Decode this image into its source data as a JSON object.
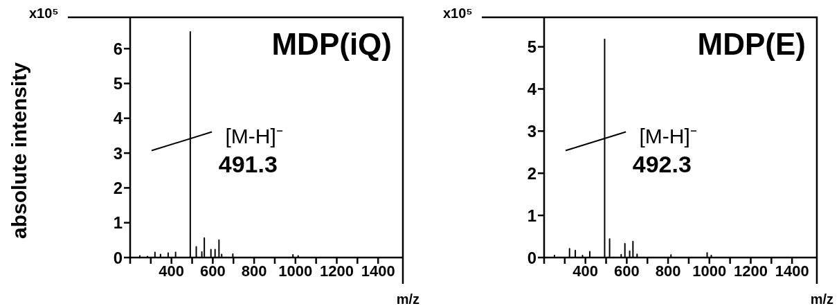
{
  "chart_data": [
    {
      "type": "line",
      "title": "MDP(iQ)",
      "ylabel": "absolute intensity",
      "xlabel": "m/z",
      "annotations": [
        "x10⁵",
        "[M-H]⁻",
        "491.3"
      ],
      "xlim": [
        200,
        1520
      ],
      "xticks": [
        {
          "value": 200,
          "label": null
        },
        {
          "value": 300,
          "label": null
        },
        400,
        {
          "value": 500,
          "label": null
        },
        600,
        {
          "value": 700,
          "label": null
        },
        800,
        {
          "value": 900,
          "label": null
        },
        1000,
        {
          "value": 1100,
          "label": null
        },
        1200,
        {
          "value": 1300,
          "label": null
        },
        1400
      ],
      "ylim": [
        0,
        6.9
      ],
      "yticks": [
        0,
        1,
        2,
        3,
        4,
        5,
        6
      ],
      "marker": "none",
      "line_style": "solid",
      "series": [
        {
          "color": "#000000",
          "x": [
            200,
            247,
            247,
            247,
            284,
            284,
            284,
            320,
            320,
            320,
            347,
            347,
            347,
            384,
            384,
            384,
            420,
            420,
            420,
            491,
            491,
            491,
            520,
            520,
            520,
            547,
            547,
            547,
            559,
            559,
            559,
            591,
            591,
            591,
            611,
            611,
            611,
            630,
            630,
            630,
            643,
            643,
            643,
            697,
            697,
            697,
            988,
            988,
            988,
            1013,
            1013,
            1013,
            1520
          ],
          "values": [
            0,
            0,
            0.05,
            0,
            0,
            0.03,
            0,
            0,
            0.15,
            0,
            0,
            0.09,
            0,
            0,
            0.13,
            0,
            0,
            0.15,
            0,
            0,
            6.48,
            0,
            0,
            0.31,
            0,
            0,
            0.16,
            0,
            0,
            0.56,
            0,
            0,
            0.23,
            0,
            0,
            0.23,
            0,
            0,
            0.5,
            0,
            0,
            0.09,
            0,
            0,
            0.1,
            0,
            0,
            0.08,
            0,
            0,
            0.05,
            0,
            0
          ]
        }
      ]
    },
    {
      "type": "line",
      "title": "MDP(E)",
      "xlabel": "m/z",
      "annotations": [
        "x10⁵",
        "[M-H]⁻",
        "492.3"
      ],
      "xlim": [
        200,
        1520
      ],
      "xticks": [
        {
          "value": 200,
          "label": null
        },
        {
          "value": 300,
          "label": null
        },
        400,
        {
          "value": 500,
          "label": null
        },
        600,
        {
          "value": 700,
          "label": null
        },
        800,
        {
          "value": 900,
          "label": null
        },
        1000,
        {
          "value": 1100,
          "label": null
        },
        1200,
        {
          "value": 1300,
          "label": null
        },
        1400
      ],
      "ylim": [
        0,
        5.7
      ],
      "yticks": [
        0,
        1,
        2,
        3,
        4,
        5
      ],
      "marker": "none",
      "line_style": "solid",
      "series": [
        {
          "color": "#000000",
          "x": [
            200,
            250,
            250,
            250,
            323,
            323,
            323,
            351,
            351,
            351,
            386,
            386,
            386,
            421,
            421,
            421,
            493,
            493,
            493,
            517,
            517,
            517,
            573,
            573,
            573,
            591,
            591,
            591,
            614,
            614,
            614,
            630,
            630,
            630,
            650,
            650,
            650,
            814,
            814,
            814,
            989,
            989,
            989,
            1009,
            1009,
            1009,
            1520
          ],
          "values": [
            0,
            0,
            0.05,
            0,
            0,
            0.21,
            0,
            0,
            0.17,
            0,
            0,
            0.05,
            0,
            0,
            0.14,
            0,
            0,
            5.18,
            0,
            0,
            0.44,
            0,
            0,
            0.07,
            0,
            0,
            0.33,
            0,
            0,
            0.15,
            0,
            0,
            0.38,
            0,
            0,
            0.08,
            0,
            0,
            0.06,
            0,
            0,
            0.11,
            0,
            0,
            0.05,
            0,
            0
          ]
        }
      ]
    }
  ]
}
